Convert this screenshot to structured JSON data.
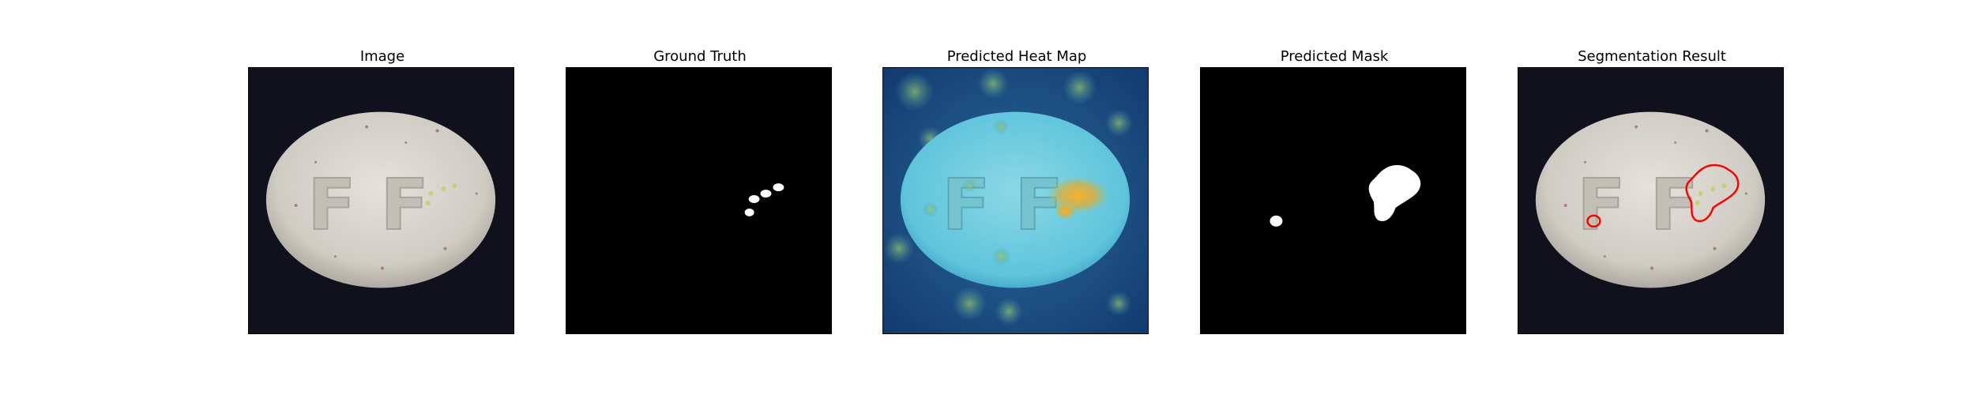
{
  "figure": {
    "panels": [
      {
        "title": "Image"
      },
      {
        "title": "Ground Truth"
      },
      {
        "title": "Predicted Heat Map"
      },
      {
        "title": "Predicted Mask"
      },
      {
        "title": "Segmentation Result"
      }
    ]
  },
  "colors": {
    "background_dark": "#0e0f1a",
    "pill_white": "#dedcd6",
    "mask_white": "#ffffff",
    "mask_black": "#000000",
    "heatmap_blue": "#1b4d86",
    "heatmap_cyan": "#6fd0e6",
    "heatmap_hot": "#f0a020",
    "contour_red": "#ff0000"
  }
}
